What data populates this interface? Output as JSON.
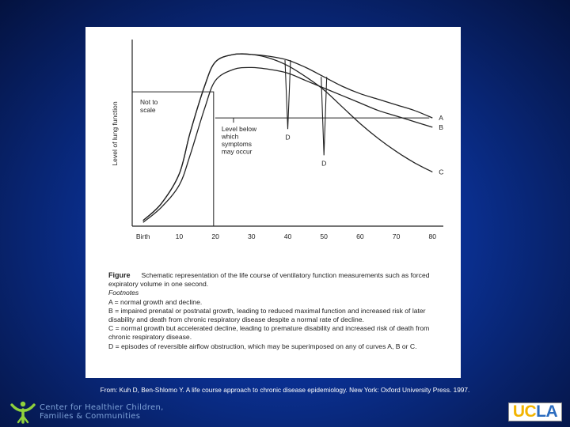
{
  "chart_data": {
    "type": "line",
    "ylabel": "Level of lung function",
    "x_ticks": [
      "Birth",
      "10",
      "20",
      "30",
      "40",
      "50",
      "60",
      "70",
      "80"
    ],
    "x_tick_values": [
      0,
      10,
      20,
      30,
      40,
      50,
      60,
      70,
      80
    ],
    "xlim": [
      -3,
      83
    ],
    "ylim": [
      0,
      100
    ],
    "series": [
      {
        "name": "A",
        "x": [
          0,
          5,
          10,
          13,
          17,
          20,
          25,
          30,
          35,
          40,
          45,
          50,
          55,
          60,
          65,
          70,
          75,
          80
        ],
        "y": [
          3,
          12,
          28,
          50,
          75,
          88,
          92,
          92,
          91,
          89,
          85,
          80,
          75,
          71,
          68,
          65,
          62,
          58
        ]
      },
      {
        "name": "B",
        "x": [
          0,
          5,
          10,
          13,
          17,
          20,
          25,
          30,
          35,
          40,
          45,
          50,
          55,
          60,
          65,
          70,
          75,
          80
        ],
        "y": [
          2,
          10,
          22,
          38,
          63,
          78,
          84,
          85,
          84,
          82,
          78,
          74,
          70,
          66,
          62,
          59,
          56,
          53
        ]
      },
      {
        "name": "C",
        "x": [
          0,
          5,
          10,
          13,
          17,
          20,
          25,
          30,
          35,
          40,
          45,
          50,
          55,
          60,
          65,
          70,
          75,
          80
        ],
        "y": [
          3,
          12,
          28,
          50,
          75,
          88,
          92,
          92,
          90,
          86,
          80,
          73,
          64,
          55,
          47,
          40,
          34,
          29
        ]
      }
    ],
    "reversible_dips": [
      {
        "label": "D",
        "x": 40,
        "y_bottom": 52
      },
      {
        "label": "D",
        "x": 50,
        "y_bottom": 38
      }
    ],
    "threshold": {
      "label_lines": [
        "Level below",
        "which",
        "symptoms",
        "may occur"
      ],
      "y": 58
    },
    "scale_note": {
      "label_lines": [
        "Not to",
        "scale"
      ],
      "x_end": 19.5,
      "y": 72
    }
  },
  "caption": {
    "figure_label": "Figure",
    "figure_text": "Schematic representation of the life course of ventilatory function measurements such as forced expiratory volume in one second.",
    "footnotes_heading": "Footnotes",
    "footnotes": [
      "A = normal growth and decline.",
      "B = impaired prenatal or postnatal growth, leading to reduced maximal function and increased risk of later disability and death from chronic respiratory disease despite a normal rate of decline.",
      "C = normal growth but accelerated decline, leading to premature disability and increased risk of death from chronic respiratory disease.",
      "D = episodes of reversible airflow obstruction, which may be superimposed on any of curves A, B or C."
    ]
  },
  "source": "From: Kuh D, Ben-Shlomo Y. A life course approach to chronic disease epidemiology. New York: Oxford University Press. 1997.",
  "footer": {
    "org_line1": "Center for Healthier Children,",
    "org_line2": "Families & Communities",
    "org_logo_icon": "chc-figure-logo",
    "ucla_logo": "UCLA",
    "colors": {
      "org_text": "#7fa3d8",
      "ucla_gold": "#f2b400",
      "ucla_blue": "#2a6bbf",
      "logo_green": "#8fd13c"
    }
  }
}
